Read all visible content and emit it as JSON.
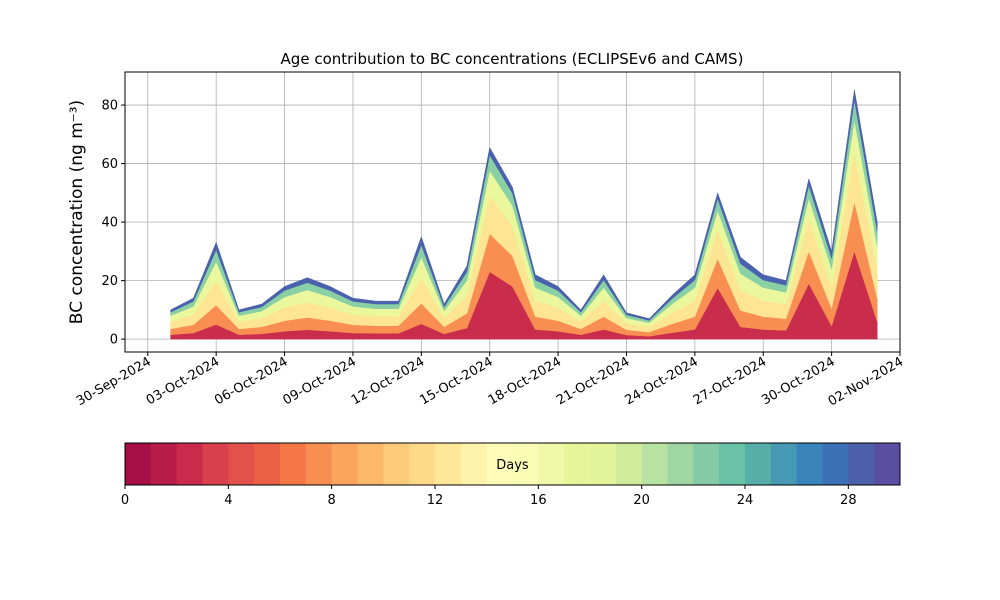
{
  "chart_data": {
    "type": "stacked-area",
    "title": "Age contribution to BC concentrations (ECLIPSEv6 and CAMS)",
    "y_label": "BC concentration (ng m⁻³)",
    "x": [
      "2024-10-01",
      "2024-10-02",
      "2024-10-03",
      "2024-10-04",
      "2024-10-05",
      "2024-10-06",
      "2024-10-07",
      "2024-10-08",
      "2024-10-09",
      "2024-10-10",
      "2024-10-11",
      "2024-10-12",
      "2024-10-13",
      "2024-10-14",
      "2024-10-15",
      "2024-10-16",
      "2024-10-17",
      "2024-10-18",
      "2024-10-19",
      "2024-10-20",
      "2024-10-21",
      "2024-10-22",
      "2024-10-23",
      "2024-10-24",
      "2024-10-25",
      "2024-10-26",
      "2024-10-27",
      "2024-10-28",
      "2024-10-29",
      "2024-10-30",
      "2024-10-31",
      "2024-11-01"
    ],
    "series": [
      {
        "color": "#c92d4b",
        "values": [
          1.5,
          2.1,
          5,
          1.5,
          1.8,
          2.7,
          3.2,
          2.7,
          2.1,
          2,
          2,
          5.2,
          1.8,
          3.8,
          23,
          18,
          3.3,
          2.7,
          1.5,
          3.3,
          1.4,
          1,
          2.2,
          3.3,
          17.5,
          4.2,
          3.3,
          3,
          19,
          4.5,
          30,
          6
        ]
      },
      {
        "color": "#f98e52",
        "values": [
          2,
          2.8,
          6.6,
          2,
          2.4,
          3.6,
          4.2,
          3.6,
          2.8,
          2.6,
          2.6,
          7,
          2.4,
          5,
          13,
          10.4,
          4.4,
          3.6,
          2,
          4.4,
          1.8,
          1.4,
          3,
          4.4,
          10,
          5.6,
          4.4,
          4,
          11,
          6,
          17,
          8
        ]
      },
      {
        "color": "#fee593",
        "values": [
          2.5,
          3.5,
          8.3,
          2.5,
          3,
          4.5,
          5.2,
          4.5,
          3.5,
          3.2,
          3.2,
          8.8,
          3,
          6.2,
          13,
          10.4,
          5.5,
          4.5,
          2.5,
          5.5,
          2.2,
          1.8,
          3.8,
          5.5,
          10,
          7,
          5.5,
          5,
          11,
          7.5,
          17,
          10
        ]
      },
      {
        "color": "#eaf79c",
        "values": [
          2,
          2.8,
          6.6,
          2,
          2.4,
          3.6,
          4.2,
          3.6,
          2.8,
          2.6,
          2.6,
          7,
          2.4,
          5,
          8.6,
          6.8,
          4.4,
          3.6,
          2,
          4.4,
          1.8,
          1.4,
          3,
          4.4,
          6.5,
          5.6,
          4.4,
          4,
          7.2,
          6,
          11,
          8
        ]
      },
      {
        "color": "#89d0a4",
        "values": [
          1.2,
          1.7,
          4,
          1.2,
          1.4,
          2.2,
          2.5,
          2.2,
          1.7,
          1.6,
          1.6,
          4.2,
          1.4,
          3,
          5.3,
          4.2,
          2.6,
          2.2,
          1.2,
          2.6,
          1.1,
          0.8,
          1.8,
          2.6,
          4,
          3.4,
          2.6,
          2.4,
          4.4,
          3.6,
          6.8,
          4.8
        ]
      },
      {
        "color": "#4a62ad",
        "values": [
          0.8,
          1.1,
          2.6,
          0.8,
          1,
          1.4,
          1.7,
          1.4,
          1.1,
          1,
          1,
          2.8,
          1,
          2,
          2.6,
          2.1,
          1.8,
          1.4,
          0.8,
          1.8,
          0.7,
          0.6,
          1.2,
          1.8,
          2,
          2.2,
          1.8,
          1.6,
          2.2,
          2.4,
          3.4,
          3.2
        ]
      }
    ],
    "xlim": [
      "2024-09-29",
      "2024-11-02"
    ],
    "xticks": [
      {
        "value": "2024-09-30",
        "label": "30-Sep-2024"
      },
      {
        "value": "2024-10-03",
        "label": "03-Oct-2024"
      },
      {
        "value": "2024-10-06",
        "label": "06-Oct-2024"
      },
      {
        "value": "2024-10-09",
        "label": "09-Oct-2024"
      },
      {
        "value": "2024-10-12",
        "label": "12-Oct-2024"
      },
      {
        "value": "2024-10-15",
        "label": "15-Oct-2024"
      },
      {
        "value": "2024-10-18",
        "label": "18-Oct-2024"
      },
      {
        "value": "2024-10-21",
        "label": "21-Oct-2024"
      },
      {
        "value": "2024-10-24",
        "label": "24-Oct-2024"
      },
      {
        "value": "2024-10-27",
        "label": "27-Oct-2024"
      },
      {
        "value": "2024-10-30",
        "label": "30-Oct-2024"
      },
      {
        "value": "2024-11-02",
        "label": "02-Nov-2024"
      }
    ],
    "ylim": [
      -4.4,
      91.3
    ],
    "yticks": [
      0,
      20,
      40,
      60,
      80
    ],
    "grid": true,
    "colorbar": {
      "label": "Days",
      "lim": [
        0,
        30
      ],
      "ticks": [
        0,
        4,
        8,
        12,
        16,
        20,
        24,
        28
      ],
      "colors": [
        "#a50f45",
        "#b71c48",
        "#c92c4b",
        "#d8404d",
        "#e2514a",
        "#ec6146",
        "#f57748",
        "#f98e52",
        "#fca55d",
        "#fdb869",
        "#fdca79",
        "#fed98a",
        "#fee797",
        "#fff2aa",
        "#fffcba",
        "#f9fcb5",
        "#f0f9a8",
        "#e6f598",
        "#e2f39a",
        "#cfec9d",
        "#b8e2a1",
        "#9fd7a4",
        "#84cba5",
        "#6bc1a5",
        "#56b0a9",
        "#4599b3",
        "#3a84bb",
        "#3b70b4",
        "#4c5fab",
        "#5a4fa2"
      ]
    }
  }
}
